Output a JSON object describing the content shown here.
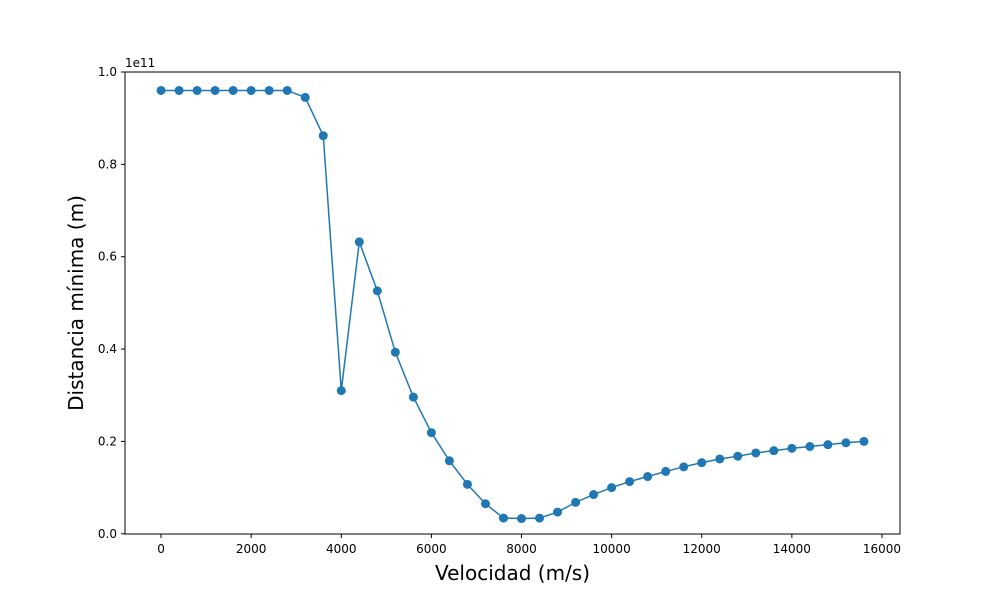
{
  "chart_data": {
    "type": "line",
    "xlabel": "Velocidad (m/s)",
    "ylabel": "Distancia mínima (m)",
    "y_offset_label": "1e11",
    "xlim": [
      -800,
      16400
    ],
    "ylim": [
      -0.0005,
      1.0
    ],
    "x_ticks": [
      0,
      2000,
      4000,
      6000,
      8000,
      10000,
      12000,
      14000,
      16000
    ],
    "x_tick_labels": [
      "0",
      "2000",
      "4000",
      "6000",
      "8000",
      "10000",
      "12000",
      "14000",
      "16000"
    ],
    "y_ticks": [
      0.0,
      0.2,
      0.4,
      0.6,
      0.8,
      1.0
    ],
    "y_tick_labels": [
      "0.0",
      "0.2",
      "0.4",
      "0.6",
      "0.8",
      "1.0"
    ],
    "grid": false,
    "marker": "circle",
    "series": [
      {
        "color": "#1f77b4",
        "x": [
          0,
          400,
          800,
          1200,
          1600,
          2000,
          2400,
          2800,
          3200,
          3600,
          4000,
          4400,
          4800,
          5200,
          5600,
          6000,
          6400,
          6800,
          7200,
          7600,
          8000,
          8400,
          8800,
          9200,
          9600,
          10000,
          10400,
          10800,
          11200,
          11600,
          12000,
          12400,
          12800,
          13200,
          13600,
          14000,
          14400,
          14800,
          15200,
          15600
        ],
        "y": [
          0.96,
          0.96,
          0.96,
          0.96,
          0.96,
          0.96,
          0.96,
          0.96,
          0.945,
          0.862,
          0.31,
          0.632,
          0.526,
          0.393,
          0.296,
          0.219,
          0.158,
          0.107,
          0.065,
          0.034,
          0.033,
          0.034,
          0.047,
          0.068,
          0.085,
          0.1,
          0.113,
          0.124,
          0.135,
          0.145,
          0.154,
          0.162,
          0.168,
          0.175,
          0.18,
          0.185,
          0.189,
          0.193,
          0.197,
          0.2
        ]
      }
    ]
  }
}
